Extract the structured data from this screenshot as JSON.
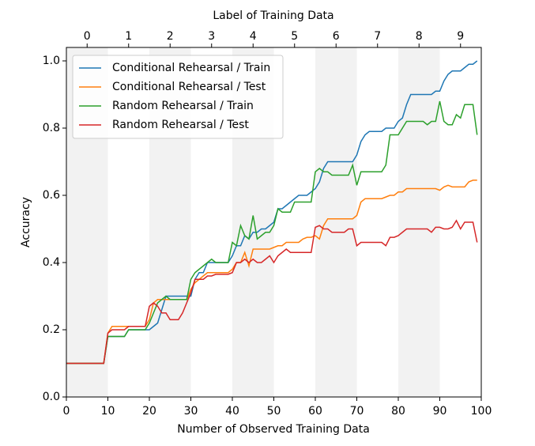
{
  "chart_data": {
    "type": "line",
    "xlabel": "Number of Observed Training Data",
    "ylabel": "Accuracy",
    "x2label": "Label of Training Data",
    "xlim": [
      0,
      100
    ],
    "ylim": [
      0,
      1.04
    ],
    "xticks": [
      0,
      10,
      20,
      30,
      40,
      50,
      60,
      70,
      80,
      90,
      100
    ],
    "yticks": [
      {
        "value": 0,
        "label": "0.0"
      },
      0.2,
      0.4,
      0.6,
      0.8,
      {
        "value": 1,
        "label": "1.0"
      }
    ],
    "x2ticks": [
      {
        "value": 5,
        "label": "0"
      },
      {
        "value": 15,
        "label": "1"
      },
      {
        "value": 25,
        "label": "2"
      },
      {
        "value": 35,
        "label": "3"
      },
      {
        "value": 45,
        "label": "4"
      },
      {
        "value": 55,
        "label": "5"
      },
      {
        "value": 65,
        "label": "6"
      },
      {
        "value": 75,
        "label": "7"
      },
      {
        "value": 85,
        "label": "8"
      },
      {
        "value": 95,
        "label": "9"
      }
    ],
    "shaded_spans": [
      [
        0,
        10
      ],
      [
        20,
        30
      ],
      [
        40,
        50
      ],
      [
        60,
        70
      ],
      [
        80,
        90
      ]
    ],
    "shade_color": "#f2f2f2",
    "legend": "upper left",
    "x": [
      0,
      1,
      2,
      3,
      4,
      5,
      6,
      7,
      8,
      9,
      10,
      11,
      12,
      13,
      14,
      15,
      16,
      17,
      18,
      19,
      20,
      21,
      22,
      23,
      24,
      25,
      26,
      27,
      28,
      29,
      30,
      31,
      32,
      33,
      34,
      35,
      36,
      37,
      38,
      39,
      40,
      41,
      42,
      43,
      44,
      45,
      46,
      47,
      48,
      49,
      50,
      51,
      52,
      53,
      54,
      55,
      56,
      57,
      58,
      59,
      60,
      61,
      62,
      63,
      64,
      65,
      66,
      67,
      68,
      69,
      70,
      71,
      72,
      73,
      74,
      75,
      76,
      77,
      78,
      79,
      80,
      81,
      82,
      83,
      84,
      85,
      86,
      87,
      88,
      89,
      90,
      91,
      92,
      93,
      94,
      95,
      96,
      97,
      98,
      99
    ],
    "series": [
      {
        "name": "Conditional Rehearsal / Train",
        "color": "#1f77b4",
        "values": [
          0.1,
          0.1,
          0.1,
          0.1,
          0.1,
          0.1,
          0.1,
          0.1,
          0.1,
          0.1,
          0.18,
          0.18,
          0.18,
          0.18,
          0.18,
          0.2,
          0.2,
          0.2,
          0.2,
          0.2,
          0.2,
          0.21,
          0.22,
          0.26,
          0.3,
          0.3,
          0.3,
          0.3,
          0.3,
          0.3,
          0.3,
          0.35,
          0.37,
          0.37,
          0.4,
          0.4,
          0.4,
          0.4,
          0.4,
          0.4,
          0.42,
          0.45,
          0.45,
          0.48,
          0.47,
          0.49,
          0.49,
          0.5,
          0.5,
          0.51,
          0.52,
          0.56,
          0.56,
          0.57,
          0.58,
          0.59,
          0.6,
          0.6,
          0.6,
          0.61,
          0.62,
          0.64,
          0.68,
          0.7,
          0.7,
          0.7,
          0.7,
          0.7,
          0.7,
          0.7,
          0.72,
          0.76,
          0.78,
          0.79,
          0.79,
          0.79,
          0.79,
          0.8,
          0.8,
          0.8,
          0.82,
          0.83,
          0.87,
          0.9,
          0.9,
          0.9,
          0.9,
          0.9,
          0.9,
          0.91,
          0.91,
          0.94,
          0.96,
          0.97,
          0.97,
          0.97,
          0.98,
          0.99,
          0.99,
          1.0
        ]
      },
      {
        "name": "Conditional Rehearsal / Test",
        "color": "#ff7f0e",
        "values": [
          0.1,
          0.1,
          0.1,
          0.1,
          0.1,
          0.1,
          0.1,
          0.1,
          0.1,
          0.1,
          0.19,
          0.21,
          0.21,
          0.21,
          0.21,
          0.21,
          0.21,
          0.21,
          0.21,
          0.21,
          0.23,
          0.28,
          0.29,
          0.29,
          0.29,
          0.29,
          0.29,
          0.29,
          0.29,
          0.29,
          0.32,
          0.34,
          0.35,
          0.36,
          0.37,
          0.37,
          0.37,
          0.37,
          0.37,
          0.37,
          0.38,
          0.4,
          0.4,
          0.43,
          0.39,
          0.44,
          0.44,
          0.44,
          0.44,
          0.44,
          0.445,
          0.45,
          0.45,
          0.46,
          0.46,
          0.46,
          0.46,
          0.47,
          0.475,
          0.475,
          0.48,
          0.47,
          0.51,
          0.53,
          0.53,
          0.53,
          0.53,
          0.53,
          0.53,
          0.53,
          0.54,
          0.58,
          0.59,
          0.59,
          0.59,
          0.59,
          0.59,
          0.595,
          0.6,
          0.6,
          0.61,
          0.61,
          0.62,
          0.62,
          0.62,
          0.62,
          0.62,
          0.62,
          0.62,
          0.62,
          0.615,
          0.625,
          0.63,
          0.625,
          0.625,
          0.625,
          0.625,
          0.64,
          0.645,
          0.645
        ]
      },
      {
        "name": "Random Rehearsal / Train",
        "color": "#2ca02c",
        "values": [
          0.1,
          0.1,
          0.1,
          0.1,
          0.1,
          0.1,
          0.1,
          0.1,
          0.1,
          0.1,
          0.18,
          0.18,
          0.18,
          0.18,
          0.18,
          0.2,
          0.2,
          0.2,
          0.2,
          0.2,
          0.22,
          0.25,
          0.28,
          0.29,
          0.3,
          0.29,
          0.29,
          0.29,
          0.29,
          0.29,
          0.35,
          0.37,
          0.38,
          0.39,
          0.4,
          0.41,
          0.4,
          0.4,
          0.4,
          0.4,
          0.46,
          0.45,
          0.51,
          0.48,
          0.47,
          0.54,
          0.47,
          0.48,
          0.49,
          0.49,
          0.51,
          0.56,
          0.55,
          0.55,
          0.55,
          0.58,
          0.58,
          0.58,
          0.58,
          0.58,
          0.67,
          0.68,
          0.67,
          0.67,
          0.66,
          0.66,
          0.66,
          0.66,
          0.66,
          0.69,
          0.63,
          0.67,
          0.67,
          0.67,
          0.67,
          0.67,
          0.67,
          0.69,
          0.78,
          0.78,
          0.78,
          0.8,
          0.82,
          0.82,
          0.82,
          0.82,
          0.82,
          0.81,
          0.82,
          0.82,
          0.88,
          0.82,
          0.81,
          0.81,
          0.84,
          0.83,
          0.87,
          0.87,
          0.87,
          0.78
        ]
      },
      {
        "name": "Random Rehearsal / Test",
        "color": "#d62728",
        "values": [
          0.1,
          0.1,
          0.1,
          0.1,
          0.1,
          0.1,
          0.1,
          0.1,
          0.1,
          0.1,
          0.19,
          0.2,
          0.2,
          0.2,
          0.2,
          0.21,
          0.21,
          0.21,
          0.21,
          0.21,
          0.27,
          0.28,
          0.27,
          0.25,
          0.25,
          0.23,
          0.23,
          0.23,
          0.25,
          0.28,
          0.31,
          0.35,
          0.35,
          0.35,
          0.36,
          0.36,
          0.365,
          0.365,
          0.365,
          0.365,
          0.37,
          0.4,
          0.4,
          0.41,
          0.4,
          0.41,
          0.4,
          0.4,
          0.41,
          0.42,
          0.4,
          0.42,
          0.43,
          0.44,
          0.43,
          0.43,
          0.43,
          0.43,
          0.43,
          0.43,
          0.505,
          0.51,
          0.5,
          0.5,
          0.49,
          0.49,
          0.49,
          0.49,
          0.5,
          0.5,
          0.45,
          0.46,
          0.46,
          0.46,
          0.46,
          0.46,
          0.46,
          0.45,
          0.475,
          0.475,
          0.48,
          0.49,
          0.5,
          0.5,
          0.5,
          0.5,
          0.5,
          0.5,
          0.49,
          0.505,
          0.505,
          0.5,
          0.5,
          0.505,
          0.525,
          0.5,
          0.52,
          0.52,
          0.52,
          0.46
        ]
      }
    ]
  }
}
